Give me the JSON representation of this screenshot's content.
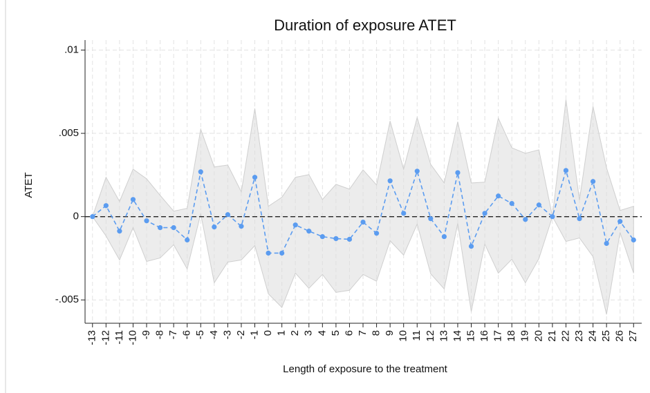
{
  "chart_data": {
    "type": "line",
    "title": "Duration of exposure ATET",
    "x_label": "Length of exposure to the treatment",
    "y_label": "ATET",
    "x": [
      -13,
      -12,
      -11,
      -10,
      -9,
      -8,
      -7,
      -6,
      -5,
      -4,
      -3,
      -2,
      -1,
      0,
      1,
      2,
      3,
      4,
      5,
      6,
      7,
      8,
      9,
      10,
      11,
      12,
      13,
      14,
      15,
      16,
      17,
      18,
      19,
      20,
      21,
      22,
      23,
      24,
      25,
      26,
      27
    ],
    "values": [
      0,
      0.00066,
      -0.00087,
      0.00103,
      -0.00025,
      -0.00066,
      -0.00066,
      -0.0014,
      0.00269,
      -0.00062,
      0.00012,
      -0.00058,
      0.00236,
      -0.00219,
      -0.00219,
      -0.0005,
      -0.00087,
      -0.0012,
      -0.00132,
      -0.00136,
      -0.00033,
      -0.001,
      0.00215,
      0.0002,
      0.00273,
      -0.00012,
      -0.0012,
      0.00264,
      -0.00178,
      0.0002,
      0.00124,
      0.00079,
      -0.00017,
      0.0007,
      0,
      0.00277,
      -0.00012,
      0.00211,
      -0.00161,
      -0.00029,
      -0.0014
    ],
    "ci_upper": [
      0,
      0.00236,
      0.00091,
      0.00285,
      0.00227,
      0.00128,
      0.00033,
      0.0005,
      0.00525,
      0.00298,
      0.0031,
      0.00149,
      0.00649,
      0.00062,
      0.00116,
      0.00236,
      0.00252,
      0.00103,
      0.00194,
      0.00165,
      0.00281,
      0.0019,
      0.00574,
      0.00285,
      0.00595,
      0.00314,
      0.00202,
      0.0057,
      0.00202,
      0.00207,
      0.00591,
      0.00413,
      0.0038,
      0.00401,
      0,
      0.00702,
      0.00099,
      0.00661,
      0.00293,
      0.00037,
      0.00062
    ],
    "ci_lower": [
      0,
      -0.00116,
      -0.0026,
      -0.00066,
      -0.00269,
      -0.00248,
      -0.00169,
      -0.00314,
      0.00017,
      -0.00397,
      -0.00273,
      -0.0026,
      -0.00174,
      -0.00463,
      -0.00545,
      -0.00339,
      -0.0043,
      -0.00347,
      -0.00455,
      -0.00442,
      -0.00347,
      -0.00388,
      -0.00145,
      -0.00231,
      -0.00045,
      -0.00343,
      -0.00434,
      -0.00041,
      -0.0057,
      -0.00165,
      -0.00339,
      -0.00256,
      -0.00397,
      -0.00252,
      0,
      -0.00149,
      -0.00128,
      -0.0024,
      -0.00587,
      -0.00095,
      -0.00339
    ],
    "color": "#5b9cf0",
    "band_color": "#dcdcdc",
    "reference_line": 0,
    "xlim": [
      -13.55,
      27.6
    ],
    "xticks": [
      -13,
      -12,
      -11,
      -10,
      -9,
      -8,
      -7,
      -6,
      -5,
      -4,
      -3,
      -2,
      -1,
      0,
      1,
      2,
      3,
      4,
      5,
      6,
      7,
      8,
      9,
      10,
      11,
      12,
      13,
      14,
      15,
      16,
      17,
      18,
      19,
      20,
      21,
      22,
      23,
      24,
      25,
      26,
      27
    ],
    "ylim": [
      -0.0064,
      0.0106
    ],
    "yticks": [
      {
        "value": -0.005,
        "label": "-.005"
      },
      0,
      {
        "value": 0.005,
        "label": ".005"
      },
      {
        "value": 0.01,
        "label": ".01"
      }
    ],
    "grid": true
  }
}
